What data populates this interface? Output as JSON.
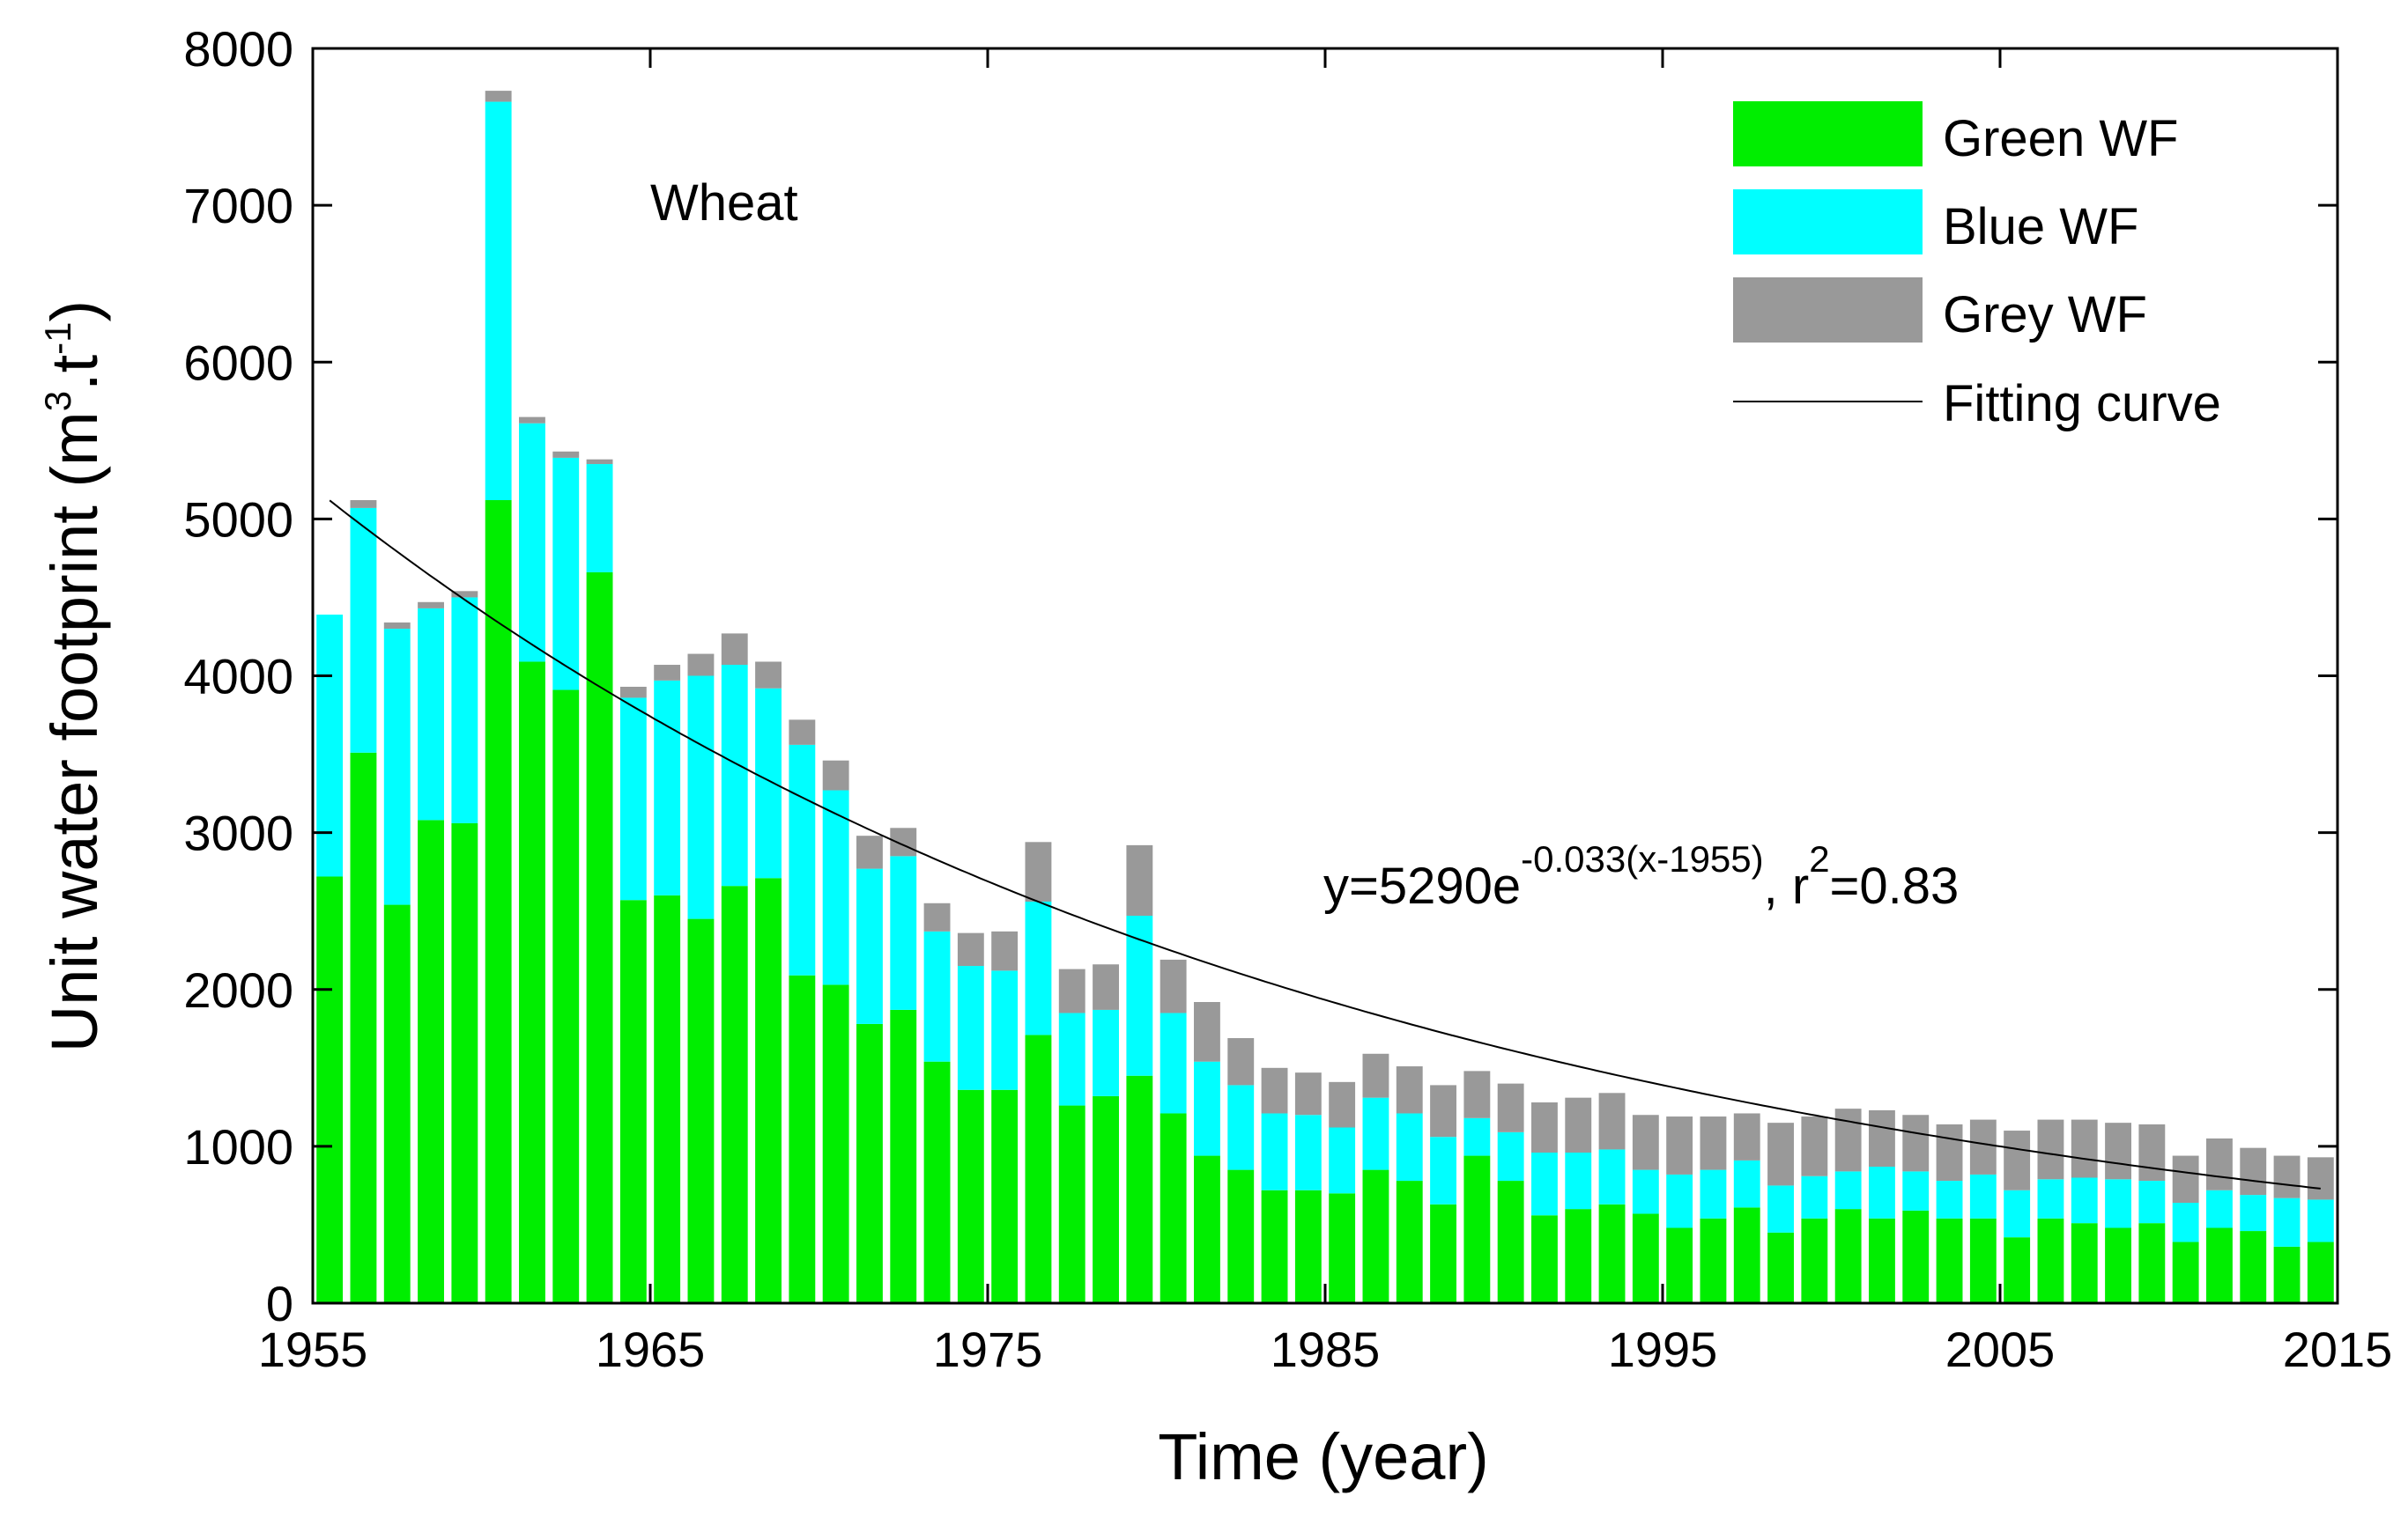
{
  "chart_data": {
    "type": "bar",
    "stacked": true,
    "title": "",
    "annotation_crop": "Wheat",
    "xlabel": "Time (year)",
    "ylabel": {
      "main": "Unit water footprint (m",
      "sup1": "3",
      "mid": ".t",
      "sup2": "-1",
      "end": ")"
    },
    "xlim": [
      1955,
      2015
    ],
    "ylim": [
      0,
      8000
    ],
    "xticks": [
      1955,
      1965,
      1975,
      1985,
      1995,
      2005,
      2015
    ],
    "yticks": [
      0,
      1000,
      2000,
      3000,
      4000,
      5000,
      6000,
      7000,
      8000
    ],
    "x": [
      1956,
      1957,
      1958,
      1959,
      1960,
      1961,
      1962,
      1963,
      1964,
      1965,
      1966,
      1967,
      1968,
      1969,
      1970,
      1971,
      1972,
      1973,
      1974,
      1975,
      1976,
      1977,
      1978,
      1979,
      1980,
      1981,
      1982,
      1983,
      1984,
      1985,
      1986,
      1987,
      1988,
      1989,
      1990,
      1991,
      1992,
      1993,
      1994,
      1995,
      1996,
      1997,
      1998,
      1999,
      2000,
      2001,
      2002,
      2003,
      2004,
      2005,
      2006,
      2007,
      2008,
      2009,
      2010,
      2011,
      2012,
      2013,
      2014,
      2015
    ],
    "series": [
      {
        "name": "Green WF",
        "color": "#00ee00",
        "values": [
          2720,
          3510,
          2540,
          3080,
          3060,
          5120,
          4090,
          3910,
          4660,
          2570,
          2600,
          2450,
          2660,
          2710,
          2090,
          2030,
          1780,
          1870,
          1540,
          1360,
          1360,
          1710,
          1260,
          1320,
          1450,
          1210,
          940,
          850,
          720,
          720,
          700,
          850,
          780,
          630,
          940,
          780,
          560,
          600,
          630,
          570,
          480,
          540,
          610,
          450,
          540,
          600,
          540,
          590,
          540,
          540,
          420,
          540,
          510,
          480,
          510,
          390,
          480,
          460,
          360,
          390
        ]
      },
      {
        "name": "Blue WF",
        "color": "#00ffff",
        "values": [
          1670,
          1560,
          1760,
          1350,
          1440,
          2540,
          1520,
          1480,
          690,
          1290,
          1370,
          1550,
          1410,
          1210,
          1470,
          1240,
          990,
          980,
          830,
          790,
          760,
          850,
          590,
          550,
          1020,
          640,
          600,
          540,
          490,
          480,
          420,
          460,
          430,
          430,
          240,
          310,
          400,
          360,
          350,
          280,
          340,
          310,
          300,
          300,
          270,
          240,
          330,
          250,
          240,
          280,
          300,
          250,
          290,
          310,
          270,
          250,
          240,
          230,
          310,
          270
        ]
      },
      {
        "name": "Grey WF",
        "color": "#999999",
        "values": [
          0,
          50,
          40,
          40,
          40,
          70,
          40,
          40,
          30,
          70,
          100,
          140,
          200,
          170,
          160,
          190,
          210,
          180,
          180,
          210,
          250,
          380,
          280,
          290,
          450,
          340,
          380,
          300,
          290,
          270,
          290,
          280,
          300,
          330,
          300,
          310,
          320,
          350,
          360,
          350,
          370,
          340,
          300,
          400,
          380,
          400,
          360,
          360,
          360,
          350,
          380,
          380,
          370,
          360,
          360,
          300,
          330,
          300,
          270,
          270
        ]
      }
    ],
    "fit": {
      "name": "Fitting curve",
      "color": "#000000",
      "a": 5290,
      "b": -0.033,
      "x0": 1955,
      "x_range": [
        1956,
        2015
      ],
      "equation": {
        "prefix": "y=5290e",
        "exponent": "-0.033(x-1955)",
        "mid": ", r",
        "r_sup": "2",
        "suffix": "=0.83"
      }
    },
    "legend_position": "top-right",
    "grid": false
  }
}
